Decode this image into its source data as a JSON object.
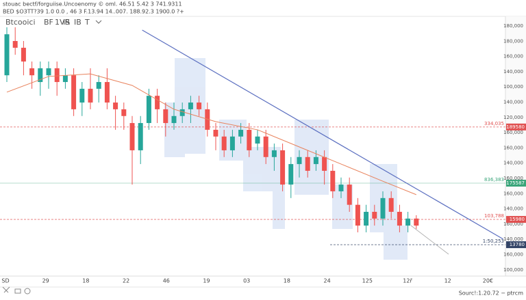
{
  "chart_data": {
    "type": "candlestick",
    "header": [
      "stouac bectf/forguiise.Uncoenomy © oml.  46.51 5.42 3 741.9311",
      "BED  $O3TT?39 1.0 0.0 , 46 3 F.13.94 14..007. 188.92.3 1900.0 ?+"
    ],
    "toolbar": [
      "Btcooici",
      "BF",
      "1VR",
      "IS",
      "IB",
      "T"
    ],
    "footer": "Sourc!:1.20.72 −  ptrcm",
    "x_labels": [
      "SD",
      "29",
      "18",
      "22",
      "46",
      "19",
      "03",
      "18",
      "24",
      "125",
      "12ř",
      "12",
      "20€"
    ],
    "axis_labels": [
      "180,000",
      "180,000",
      "160,000",
      "140,000",
      "100,000",
      "140,000",
      "120,000",
      "160,000",
      "160,000",
      "140,000",
      "160,000",
      "160,000",
      "140,000",
      "160,000",
      "140,000",
      "160,000",
      "100,000"
    ],
    "ylim": [
      100000,
      190000
    ],
    "up_color": "#26a69a",
    "down_color": "#ef5350",
    "open": [
      170500,
      182700,
      180300,
      173000,
      168100,
      170500,
      173000,
      168100,
      170500,
      160800,
      165700,
      165700,
      168100,
      160800,
      158400,
      153500,
      143800,
      153500,
      163200,
      158400,
      153500,
      156000,
      158400,
      160800,
      158400,
      151100,
      148700,
      143800,
      148700,
      151100,
      146200,
      148700,
      141400,
      143800,
      131600,
      138900,
      141400,
      138900,
      141400,
      136500,
      129200,
      131600,
      124400,
      117000,
      121900,
      119500,
      126800,
      121900,
      117000,
      119500
    ],
    "high": [
      187600,
      187600,
      182700,
      175400,
      175400,
      175400,
      175400,
      173000,
      173000,
      168100,
      173000,
      170500,
      173000,
      163200,
      160800,
      156000,
      156000,
      165700,
      165700,
      160800,
      160800,
      160800,
      163200,
      163200,
      160800,
      153500,
      151100,
      151100,
      153500,
      153500,
      151100,
      151100,
      146200,
      146200,
      141400,
      143800,
      143800,
      143800,
      143800,
      138900,
      134100,
      134100,
      126800,
      124400,
      124400,
      129200,
      129200,
      124400,
      121900,
      120700
    ],
    "low": [
      168100,
      177800,
      170500,
      165700,
      163200,
      165700,
      163200,
      165700,
      156000,
      156000,
      158400,
      160800,
      158400,
      151100,
      151100,
      131600,
      138900,
      151100,
      153500,
      148700,
      151100,
      153500,
      153500,
      156000,
      148700,
      143800,
      141400,
      141400,
      146200,
      141400,
      143800,
      138900,
      136500,
      129200,
      126800,
      134100,
      134100,
      136500,
      131600,
      126800,
      126800,
      121900,
      114600,
      114600,
      117000,
      117000,
      119500,
      114600,
      114600,
      115800
    ],
    "close": [
      185100,
      180300,
      175400,
      170500,
      173000,
      173000,
      168100,
      170500,
      158400,
      165700,
      160800,
      168100,
      160800,
      158400,
      156000,
      143800,
      153500,
      163200,
      158400,
      153500,
      156000,
      158400,
      160800,
      158400,
      151100,
      148700,
      143800,
      148700,
      151100,
      143800,
      148700,
      141400,
      143800,
      131600,
      138900,
      141400,
      136500,
      141400,
      136500,
      129200,
      131600,
      124400,
      117000,
      121900,
      119500,
      126800,
      121900,
      117000,
      119500,
      117000
    ],
    "moving_average": {
      "color": "#e8825c",
      "x": [
        0,
        5,
        10,
        15,
        20,
        25,
        30,
        35,
        40,
        45,
        49
      ],
      "values": [
        164500,
        170100,
        171000,
        166900,
        158400,
        154000,
        151100,
        145000,
        138900,
        132800,
        128000
      ]
    },
    "trendline": {
      "color": "#5b6fc0",
      "x": [
        16.2,
        59.4
      ],
      "values": [
        186600,
        112200
      ]
    },
    "levels": [
      {
        "value": 152100,
        "label": "334,035",
        "price_tag": "189580",
        "color": "#e05050"
      },
      {
        "value": 132100,
        "label": "836,383",
        "price_tag": "175587",
        "color": "#3aa57a"
      },
      {
        "value": 119200,
        "label": "103,788",
        "price_tag": "15980",
        "color": "#e05050"
      },
      {
        "value": 110200,
        "label": "1:50,253",
        "price_tag": "13780",
        "color": "#334466"
      }
    ]
  }
}
